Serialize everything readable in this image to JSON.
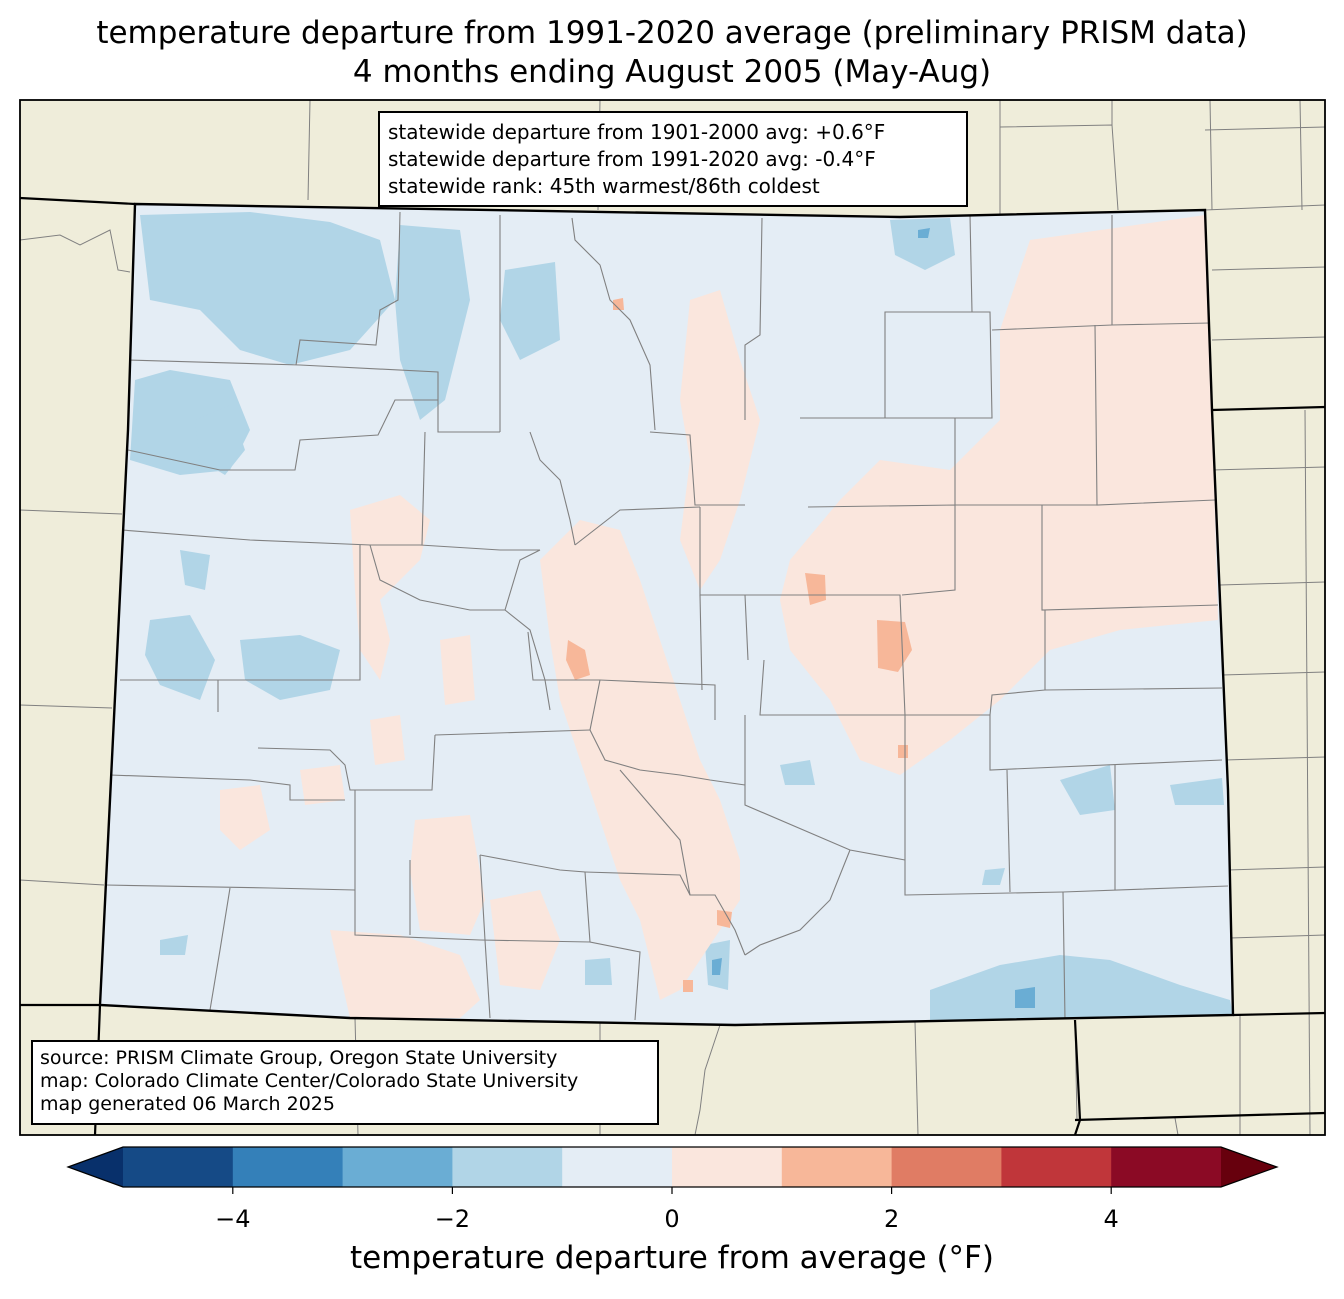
{
  "title_line1": "temperature departure from 1991-2020 average (preliminary PRISM data)",
  "title_line2": "4 months ending August 2005 (May-Aug)",
  "stats": {
    "line1": "statewide departure from 1901-2000 avg: +0.6°F",
    "line2": "statewide departure from 1991-2020 avg: -0.4°F",
    "line3": "statewide rank: 45th warmest/86th coldest"
  },
  "credits": {
    "line1": "source: PRISM Climate Group, Oregon State University",
    "line2": "map: Colorado Climate Center/Colorado State University",
    "line3": "map generated 06 March 2025"
  },
  "colorbar": {
    "label": "temperature departure from average (°F)",
    "min": -5,
    "max": 5,
    "step": 1,
    "ticks": [
      "−4",
      "−2",
      "0",
      "2",
      "4"
    ],
    "tick_values": [
      -4,
      -2,
      0,
      2,
      4
    ],
    "under_color": "#08306b",
    "over_color": "#67000d",
    "colors": [
      "#154a86",
      "#3480b9",
      "#6aadd4",
      "#b1d5e7",
      "#e4edf5",
      "#fae6dd",
      "#f7b799",
      "#e07c64",
      "#c0363a",
      "#8b0a25"
    ]
  },
  "map": {
    "region": "Colorado",
    "background_color": "#efedda",
    "state_fill": "#e4edf5",
    "county_line_color": "#808080",
    "border_color": "#000000"
  }
}
